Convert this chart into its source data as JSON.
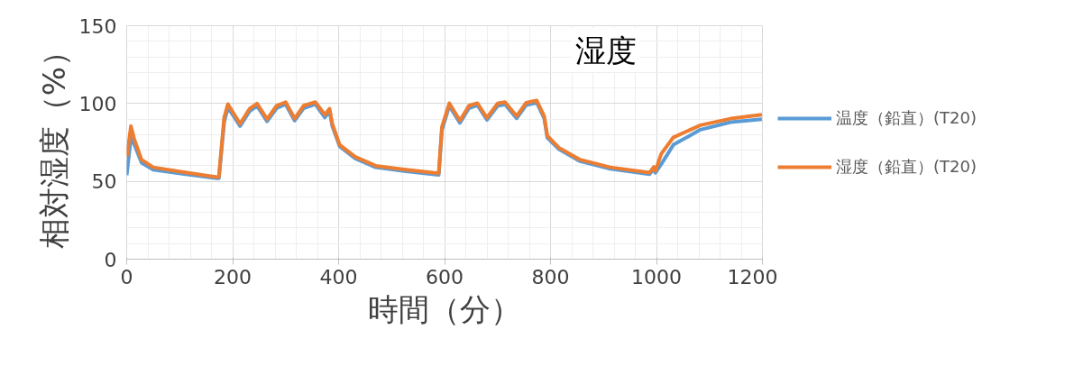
{
  "chart_data": {
    "type": "line",
    "title": "湿度",
    "xlabel": "時間（分）",
    "ylabel": "相対湿度（%）",
    "xlim": [
      0,
      1200
    ],
    "ylim": [
      0,
      150
    ],
    "xticks": [
      0,
      200,
      400,
      600,
      800,
      1000,
      1200
    ],
    "yticks": [
      0,
      50,
      100,
      150
    ],
    "grid": true,
    "legend": "right",
    "marker": "none",
    "line_style": "solid",
    "series": [
      {
        "name": "温度（鉛直）(T20)",
        "color": "#5b9bd5",
        "x": [
          0,
          2,
          8,
          14,
          28,
          50,
          102,
          170,
          174,
          184,
          191,
          214,
          232,
          246,
          265,
          283,
          300,
          317,
          334,
          356,
          374,
          383,
          388,
          402,
          431,
          470,
          527,
          589,
          595,
          609,
          629,
          646,
          662,
          680,
          700,
          714,
          736,
          754,
          774,
          788,
          794,
          816,
          856,
          913,
          987,
          995,
          998,
          1009,
          1032,
          1083,
          1140,
          1199
        ],
        "values": [
          54,
          60,
          78,
          74,
          62,
          57.5,
          55,
          52,
          52,
          88,
          97.5,
          85.5,
          95,
          98.5,
          88.5,
          97,
          99.5,
          89,
          97,
          99.5,
          91,
          95,
          85.5,
          72.5,
          64.8,
          59,
          56.5,
          54.2,
          83,
          98.5,
          87.5,
          97,
          99,
          89.5,
          98.5,
          99.5,
          90.5,
          99,
          100.5,
          90.5,
          78,
          70.6,
          62.9,
          58,
          54.6,
          58,
          55.5,
          61,
          73.5,
          83.2,
          88,
          89.9
        ]
      },
      {
        "name": "湿度（鉛直）(T20)",
        "color": "#ed7d31",
        "x": [
          0,
          2,
          8,
          14,
          28,
          50,
          102,
          170,
          174,
          184,
          191,
          214,
          232,
          246,
          265,
          283,
          300,
          317,
          334,
          356,
          374,
          383,
          388,
          402,
          431,
          470,
          527,
          589,
          595,
          609,
          629,
          646,
          662,
          680,
          700,
          714,
          736,
          754,
          774,
          788,
          794,
          816,
          856,
          913,
          987,
          995,
          998,
          1009,
          1032,
          1083,
          1140,
          1199
        ],
        "values": [
          66,
          69.7,
          85.5,
          77.4,
          63.9,
          59,
          56.2,
          52.7,
          53,
          90.9,
          99.6,
          87,
          96.7,
          100,
          90,
          98.6,
          100.9,
          90.3,
          98.6,
          100.9,
          92.8,
          96.7,
          87,
          73.5,
          65.8,
          60,
          57.5,
          55.2,
          85,
          100.2,
          89,
          98.6,
          100.2,
          90.9,
          100,
          100.9,
          91.9,
          100.5,
          101.9,
          91.9,
          79.3,
          71.6,
          63.9,
          59,
          55.6,
          59.3,
          56.8,
          67.7,
          78.3,
          86.1,
          90.3,
          92.8
        ]
      }
    ]
  }
}
